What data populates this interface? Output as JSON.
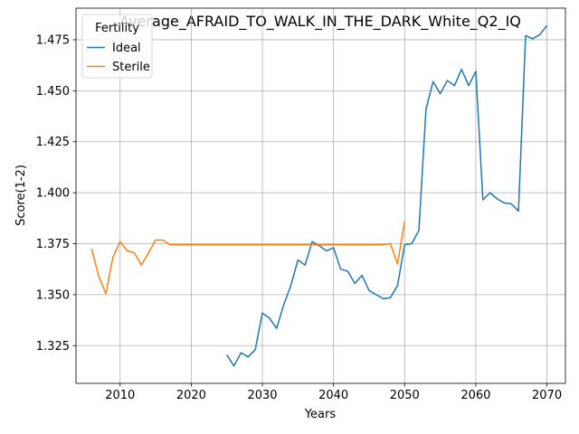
{
  "chart_data": {
    "type": "line",
    "title": "Average_AFRAID_TO_WALK_IN_THE_DARK_White_Q2_IQ",
    "xlabel": "Years",
    "ylabel": "Score(1-2)",
    "xlim": [
      2003.8,
      2072.6
    ],
    "ylim": [
      1.3065,
      1.4905
    ],
    "x_ticks": [
      2010,
      2020,
      2030,
      2040,
      2050,
      2060,
      2070
    ],
    "y_ticks": [
      1.325,
      1.35,
      1.375,
      1.4,
      1.425,
      1.45,
      1.475
    ],
    "x_tick_labels": [
      "2010",
      "2020",
      "2030",
      "2040",
      "2050",
      "2060",
      "2070"
    ],
    "y_tick_labels": [
      "1.325",
      "1.350",
      "1.375",
      "1.400",
      "1.425",
      "1.450",
      "1.475"
    ],
    "grid": true,
    "legend": {
      "title": "Fertility",
      "placement": "top-left"
    },
    "series": [
      {
        "name": "Ideal",
        "color": "#1f77b4",
        "x": [
          2025,
          2026,
          2027,
          2028,
          2029,
          2030,
          2031,
          2032,
          2033,
          2034,
          2035,
          2036,
          2037,
          2038,
          2039,
          2040,
          2041,
          2042,
          2043,
          2044,
          2045,
          2046,
          2047,
          2048,
          2049,
          2050,
          2051,
          2052,
          2053,
          2054,
          2055,
          2056,
          2057,
          2058,
          2059,
          2060,
          2061,
          2062,
          2063,
          2064,
          2065,
          2066,
          2067,
          2068,
          2069,
          2070
        ],
        "y": [
          1.3205,
          1.315,
          1.3215,
          1.3195,
          1.323,
          1.341,
          1.3385,
          1.3335,
          1.345,
          1.3545,
          1.367,
          1.3645,
          1.376,
          1.374,
          1.3715,
          1.373,
          1.3625,
          1.3615,
          1.3555,
          1.3595,
          1.352,
          1.35,
          1.348,
          1.3485,
          1.3545,
          1.3745,
          1.375,
          1.3815,
          1.441,
          1.4545,
          1.4485,
          1.455,
          1.4525,
          1.4605,
          1.4525,
          1.4595,
          1.3965,
          1.4,
          1.397,
          1.395,
          1.3945,
          1.391,
          1.477,
          1.4755,
          1.4775,
          1.482
        ]
      },
      {
        "name": "Sterile",
        "color": "#ff7f0e",
        "x": [
          2006,
          2007,
          2008,
          2009,
          2010,
          2011,
          2012,
          2013,
          2014,
          2015,
          2016,
          2017,
          2018,
          2019,
          2020,
          2021,
          2022,
          2023,
          2024,
          2025,
          2026,
          2027,
          2028,
          2029,
          2030,
          2031,
          2032,
          2033,
          2034,
          2035,
          2036,
          2037,
          2038,
          2039,
          2040,
          2041,
          2042,
          2043,
          2044,
          2045,
          2046,
          2047,
          2048,
          2049,
          2050
        ],
        "y": [
          1.3725,
          1.359,
          1.3505,
          1.3685,
          1.376,
          1.3715,
          1.3705,
          1.3645,
          1.3705,
          1.3768,
          1.3768,
          1.3745,
          1.3745,
          1.3745,
          1.3745,
          1.3745,
          1.3745,
          1.3745,
          1.3745,
          1.3745,
          1.3745,
          1.3745,
          1.3745,
          1.3745,
          1.3745,
          1.3745,
          1.3745,
          1.3745,
          1.3745,
          1.3745,
          1.3745,
          1.3745,
          1.3745,
          1.3745,
          1.3745,
          1.3745,
          1.3745,
          1.3745,
          1.3745,
          1.3745,
          1.3745,
          1.3745,
          1.375,
          1.365,
          1.386
        ]
      }
    ]
  }
}
